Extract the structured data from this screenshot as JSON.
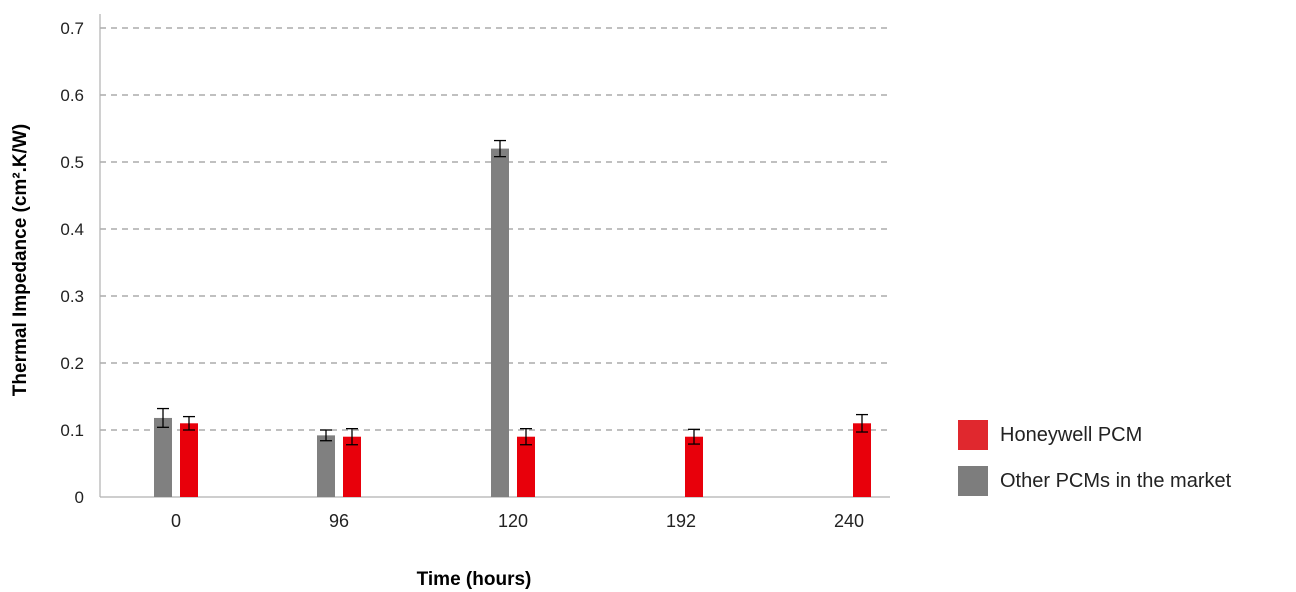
{
  "chart_data": {
    "type": "bar",
    "xlabel": "Time (hours)",
    "ylabel": "Thermal Impedance (cm².K/W)",
    "ylim": [
      0,
      0.7
    ],
    "yticks": [
      "0",
      "0.1",
      "0.2",
      "0.3",
      "0.4",
      "0.5",
      "0.6",
      "0.7"
    ],
    "categories": [
      "0",
      "96",
      "120",
      "192",
      "240"
    ],
    "grid": true,
    "legend_position": "right",
    "series": [
      {
        "name": "Other PCMs in the market",
        "color": "#808080",
        "values": [
          0.118,
          0.092,
          0.52,
          null,
          null
        ],
        "errors": [
          0.014,
          0.008,
          0.012,
          null,
          null
        ]
      },
      {
        "name": "Honeywell PCM",
        "color": "#e8000b",
        "values": [
          0.11,
          0.09,
          0.09,
          0.09,
          0.11
        ],
        "errors": [
          0.01,
          0.012,
          0.012,
          0.011,
          0.013
        ]
      }
    ],
    "legend_order": [
      1,
      0
    ],
    "legend_colors": [
      "#e0282e",
      "#7d7d7d"
    ]
  }
}
